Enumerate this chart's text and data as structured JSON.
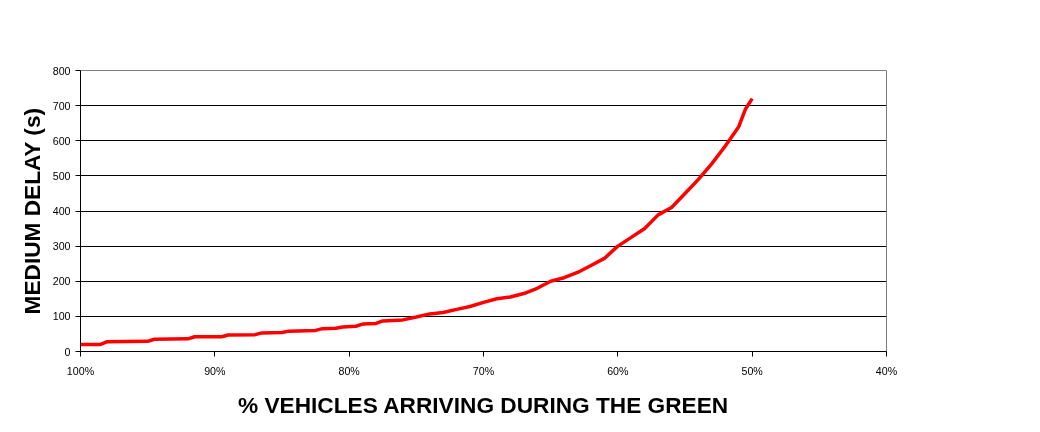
{
  "chart_data": {
    "type": "line",
    "xlabel": "% VEHICLES ARRIVING DURING THE GREEN",
    "ylabel": "MEDIUM DELAY (s)",
    "series": [
      {
        "color": "#ff0000",
        "x": [
          100,
          98.5,
          98,
          95,
          94.5,
          92,
          91.5,
          89.5,
          89,
          87,
          86.5,
          85,
          84.5,
          82.5,
          82,
          81,
          80.5,
          79.5,
          79,
          78,
          77.5,
          76,
          75,
          74,
          73,
          72,
          71,
          70,
          69,
          68,
          67,
          66,
          65,
          64,
          63,
          62,
          61,
          60,
          59,
          58,
          57,
          56,
          55,
          54,
          53,
          52,
          51,
          50.5,
          50
        ],
        "values": [
          20,
          20,
          28,
          29,
          35,
          36,
          42,
          42,
          47,
          48,
          53,
          54,
          58,
          60,
          65,
          66,
          70,
          72,
          78,
          80,
          87,
          90,
          98,
          107,
          111,
          120,
          128,
          140,
          150,
          155,
          165,
          180,
          200,
          210,
          225,
          245,
          265,
          300,
          325,
          350,
          389,
          410,
          450,
          490,
          535,
          585,
          640,
          690,
          720
        ]
      }
    ],
    "xlim": [
      100,
      40
    ],
    "ylim": [
      0,
      800
    ],
    "xticks": [
      {
        "value": 100,
        "label": "100%"
      },
      {
        "value": 90,
        "label": "90%"
      },
      {
        "value": 80,
        "label": "80%"
      },
      {
        "value": 70,
        "label": "70%"
      },
      {
        "value": 60,
        "label": "60%"
      },
      {
        "value": 50,
        "label": "50%"
      },
      {
        "value": 40,
        "label": "40%"
      }
    ],
    "yticks": [
      0,
      100,
      200,
      300,
      400,
      500,
      600,
      700,
      800
    ],
    "grid": "y",
    "marker": "none",
    "line_style": "solid"
  }
}
